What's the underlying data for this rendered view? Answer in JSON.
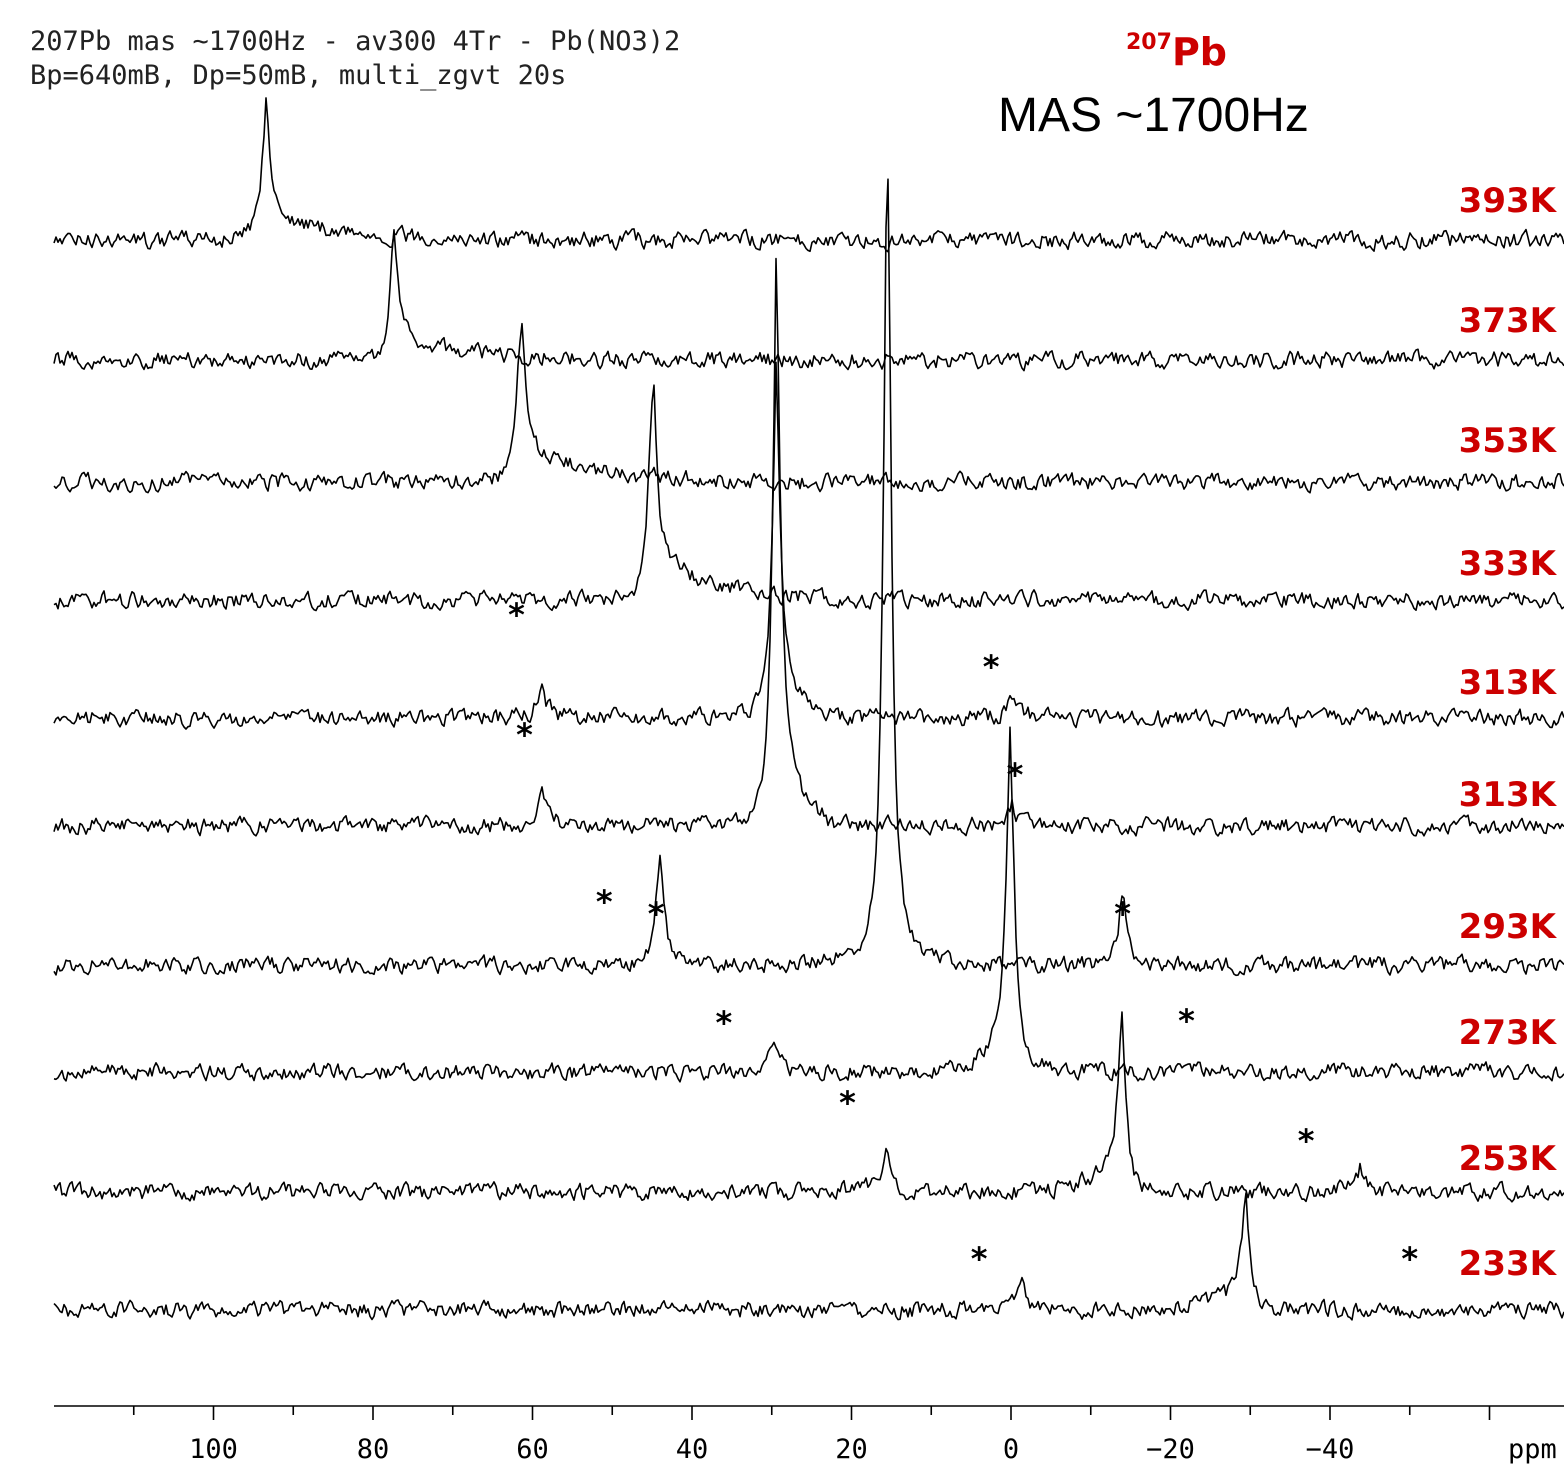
{
  "header": {
    "line1": "207Pb mas ~1700Hz - av300 4Tr - Pb(NO3)2",
    "line2": "Bp=640mB, Dp=50mB, multi_zgvt 20s"
  },
  "nucleus_label": {
    "isotope": "207",
    "element": "Pb"
  },
  "spin_rate_label": "MAS ~1700Hz",
  "colors": {
    "trace": "#000000",
    "temperature_label": "#cc0000",
    "nucleus_label": "#cc0000",
    "axis": "#000000"
  },
  "chart_data": {
    "type": "line",
    "title": "",
    "xlabel": "ppm",
    "xlim": [
      120,
      -70
    ],
    "x_direction": "reversed",
    "x_ticks": [
      100,
      80,
      60,
      40,
      20,
      0,
      -20,
      -40
    ],
    "x_tick_labels": [
      "100",
      "80",
      "60",
      "40",
      "20",
      "0",
      "−20",
      "−40"
    ],
    "minor_tick_step": 10,
    "series": [
      {
        "name": "393K",
        "peaks": [
          {
            "ppm": 93.5,
            "height": 1.45,
            "tail": "asym",
            "tail_len": 25
          }
        ],
        "spinning_sidebands": []
      },
      {
        "name": "373K",
        "peaks": [
          {
            "ppm": 77.5,
            "height": 1.35,
            "tail": "asym",
            "tail_len": 25
          }
        ],
        "spinning_sidebands": []
      },
      {
        "name": "353K",
        "peaks": [
          {
            "ppm": 61.5,
            "height": 1.8,
            "tail": "asym",
            "tail_len": 25
          }
        ],
        "spinning_sidebands": []
      },
      {
        "name": "333K",
        "peaks": [
          {
            "ppm": 45.0,
            "height": 2.4,
            "tail": "asym",
            "tail_len": 22
          }
        ],
        "spinning_sidebands": []
      },
      {
        "name": "313K",
        "peaks": [
          {
            "ppm": 29.5,
            "height": 3.5,
            "tail": "asym",
            "tail_len": 6
          },
          {
            "ppm": 59.0,
            "height": 0.35,
            "tail": "asym",
            "tail_len": 6
          },
          {
            "ppm": 0.0,
            "height": 0.25,
            "tail": "asym",
            "tail_len": 6
          }
        ],
        "spinning_sidebands": [
          62.0,
          2.5
        ]
      },
      {
        "name": "313K",
        "peaks": [
          {
            "ppm": 29.5,
            "height": 5.7,
            "tail": "asym",
            "tail_len": 6
          },
          {
            "ppm": 59.0,
            "height": 0.35,
            "tail": "asym",
            "tail_len": 6
          },
          {
            "ppm": 0.0,
            "height": 0.25,
            "tail": "asym",
            "tail_len": 6
          }
        ],
        "spinning_sidebands": [
          61.0,
          -0.5
        ]
      },
      {
        "name": "293K",
        "peaks": [
          {
            "ppm": 15.5,
            "height": 9.7,
            "tail": "none"
          },
          {
            "ppm": 44.0,
            "height": 1.3,
            "tail": "none"
          },
          {
            "ppm": -14.0,
            "height": 0.85,
            "tail": "none"
          }
        ],
        "spinning_sidebands": [
          51.0,
          44.5,
          -14.0
        ]
      },
      {
        "name": "273K",
        "peaks": [
          {
            "ppm": 0.0,
            "height": 3.45,
            "tail": "asym-left",
            "tail_len": 6
          },
          {
            "ppm": 29.5,
            "height": 0.4,
            "tail": "asym-left",
            "tail_len": 6
          }
        ],
        "spinning_sidebands": [
          36.0,
          -22.0
        ]
      },
      {
        "name": "253K",
        "peaks": [
          {
            "ppm": -14.0,
            "height": 1.85,
            "tail": "asym-left",
            "tail_len": 10
          },
          {
            "ppm": 15.5,
            "height": 0.4,
            "tail": "asym-left",
            "tail_len": 10
          },
          {
            "ppm": -44.0,
            "height": 0.25,
            "tail": "asym-left",
            "tail_len": 10
          }
        ],
        "spinning_sidebands": [
          20.5,
          -37.0
        ]
      },
      {
        "name": "233K",
        "peaks": [
          {
            "ppm": -29.5,
            "height": 1.15,
            "tail": "asym-left",
            "tail_len": 12
          },
          {
            "ppm": -1.5,
            "height": 0.3,
            "tail": "asym-left",
            "tail_len": 12
          }
        ],
        "spinning_sidebands": [
          4.0,
          -50.0
        ]
      }
    ],
    "sideband_marker": "*"
  }
}
